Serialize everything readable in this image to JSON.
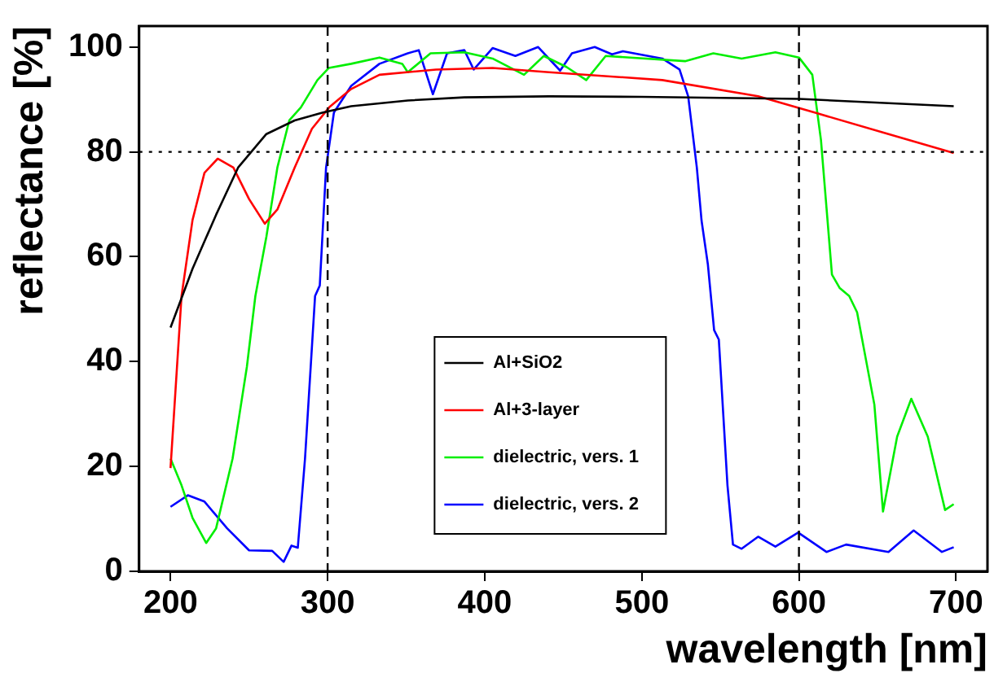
{
  "chart_data": {
    "type": "line",
    "xlabel": "wavelength [nm]",
    "ylabel": "reflectance [%]",
    "xlim": [
      180,
      720
    ],
    "xticks": [
      200,
      300,
      400,
      500,
      600,
      700
    ],
    "ylim": [
      0,
      104
    ],
    "yticks": [
      0,
      20,
      40,
      60,
      80,
      100
    ],
    "grid": false,
    "legend": "bottom center",
    "marker": "none",
    "line_style": "solid",
    "series": [
      {
        "name": "Al+SiO2",
        "color": "#000000",
        "x": [
          200,
          214,
          229,
          243,
          261,
          279,
          297,
          315,
          351,
          387,
          441,
          500,
          600,
          698.5
        ],
        "values": [
          46.5,
          57.7,
          68,
          77,
          83.4,
          86,
          87.5,
          88.7,
          89.8,
          90.4,
          90.6,
          90.5,
          90.1,
          88.7
        ]
      },
      {
        "name": "Al+3-layer",
        "color": "#ff0000",
        "x": [
          200,
          207,
          214,
          221.6,
          230,
          240,
          250,
          260,
          268,
          279,
          290,
          301,
          315,
          333,
          369,
          405,
          441,
          513,
          574,
          610,
          657,
          698.5
        ],
        "values": [
          19.7,
          52.5,
          67,
          76,
          78.7,
          77,
          71,
          66.3,
          69,
          77,
          84.4,
          88.5,
          92,
          94.7,
          95.7,
          96,
          95.2,
          93.7,
          90.6,
          87.5,
          83.4,
          79.8
        ]
      },
      {
        "name": "dielectric, vers. 1",
        "color": "#00ee00",
        "x": [
          200,
          207,
          214,
          222.7,
          229,
          239.5,
          248.6,
          254,
          261,
          268,
          275.6,
          283,
          293.5,
          300.7,
          315,
          333,
          347.5,
          351,
          365.5,
          387,
          405,
          425,
          437.6,
          452,
          464.6,
          477,
          527.5,
          545.5,
          563.5,
          585,
          600,
          608.5,
          614,
          621,
          626,
          632,
          637,
          648,
          653.5,
          662.5,
          671.5,
          682,
          693,
          698.5
        ],
        "values": [
          21.5,
          16.4,
          10.2,
          5.4,
          8.2,
          21.5,
          39,
          52.5,
          63.8,
          77,
          86,
          88.5,
          93.7,
          96,
          96.8,
          98,
          96.8,
          95.2,
          98.8,
          99,
          97.8,
          94.7,
          98.3,
          96.2,
          93.7,
          98.3,
          97.3,
          98.8,
          97.8,
          99,
          98,
          94.7,
          82.3,
          56.6,
          54,
          52.5,
          49.4,
          31.8,
          11.4,
          25.7,
          32.9,
          25.7,
          11.7,
          12.8
        ]
      },
      {
        "name": "dielectric, vers. 2",
        "color": "#0000ff",
        "x": [
          200,
          211,
          221.6,
          236,
          250,
          264.7,
          272,
          277,
          281,
          285.6,
          292,
          295,
          299,
          304,
          315,
          333,
          351,
          358,
          367,
          376,
          387,
          393,
          405,
          419.5,
          434,
          448,
          455.5,
          470,
          481,
          488,
          513,
          524,
          529.5,
          535,
          538,
          542,
          546,
          549,
          554.5,
          558,
          563.5,
          574,
          585,
          599.5,
          617.5,
          630,
          657,
          673,
          691,
          698.5
        ],
        "values": [
          12.3,
          14.5,
          13.3,
          8.2,
          4,
          3.9,
          1.8,
          4.9,
          4.5,
          21.5,
          52.5,
          54.5,
          77,
          87.5,
          92.6,
          96.8,
          98.8,
          99.4,
          91,
          98.8,
          99.4,
          95.7,
          99.8,
          98.3,
          100,
          95.5,
          98.8,
          100,
          98.6,
          99.2,
          97.8,
          95.7,
          90.6,
          77,
          66.9,
          58.6,
          46,
          44.2,
          16.4,
          5.1,
          4.3,
          6.6,
          4.7,
          7.4,
          3.7,
          5.1,
          3.7,
          7.8,
          3.7,
          4.6
        ]
      }
    ],
    "ref_lines": [
      {
        "axis": "x",
        "value": 300,
        "line_style": "dashed",
        "color": "#000000"
      },
      {
        "axis": "x",
        "value": 600,
        "line_style": "dashed",
        "color": "#000000"
      },
      {
        "axis": "y",
        "value": 80,
        "line_style": "dotted",
        "color": "#000000"
      }
    ]
  }
}
